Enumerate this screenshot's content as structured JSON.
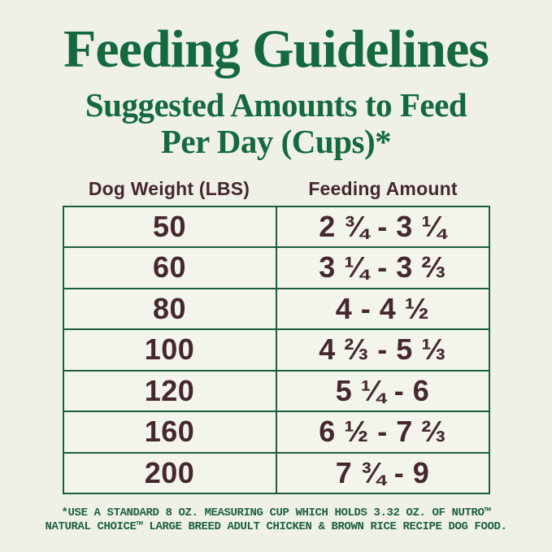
{
  "header": {
    "title": "Feeding Guidelines",
    "subtitle_line1": "Suggested Amounts to Feed",
    "subtitle_line2": "Per Day (Cups)*"
  },
  "table": {
    "columns": [
      "Dog Weight (LBS)",
      "Feeding Amount"
    ],
    "rows": [
      {
        "weight": "50",
        "amount": "2 ¾ - 3 ¼"
      },
      {
        "weight": "60",
        "amount": "3 ¼ - 3 ⅔"
      },
      {
        "weight": "80",
        "amount": "4 - 4 ½"
      },
      {
        "weight": "100",
        "amount": "4 ⅔ - 5 ⅓"
      },
      {
        "weight": "120",
        "amount": "5 ¼ - 6"
      },
      {
        "weight": "160",
        "amount": "6 ½ - 7 ⅔"
      },
      {
        "weight": "200",
        "amount": "7 ¾ - 9"
      }
    ]
  },
  "footnote": {
    "line1": "*USE A STANDARD 8 OZ. MEASURING CUP WHICH HOLDS 3.32 OZ. OF NUTRO™",
    "line2": "NATURAL CHOICE™ LARGE BREED ADULT CHICKEN & BROWN RICE RECIPE DOG FOOD."
  },
  "colors": {
    "background": "#eff1e8",
    "heading_green": "#15693f",
    "table_border_green": "#1d5c40",
    "cell_background": "#f3f5ec",
    "text_brown": "#45282f",
    "footnote_green": "#1e6040"
  }
}
